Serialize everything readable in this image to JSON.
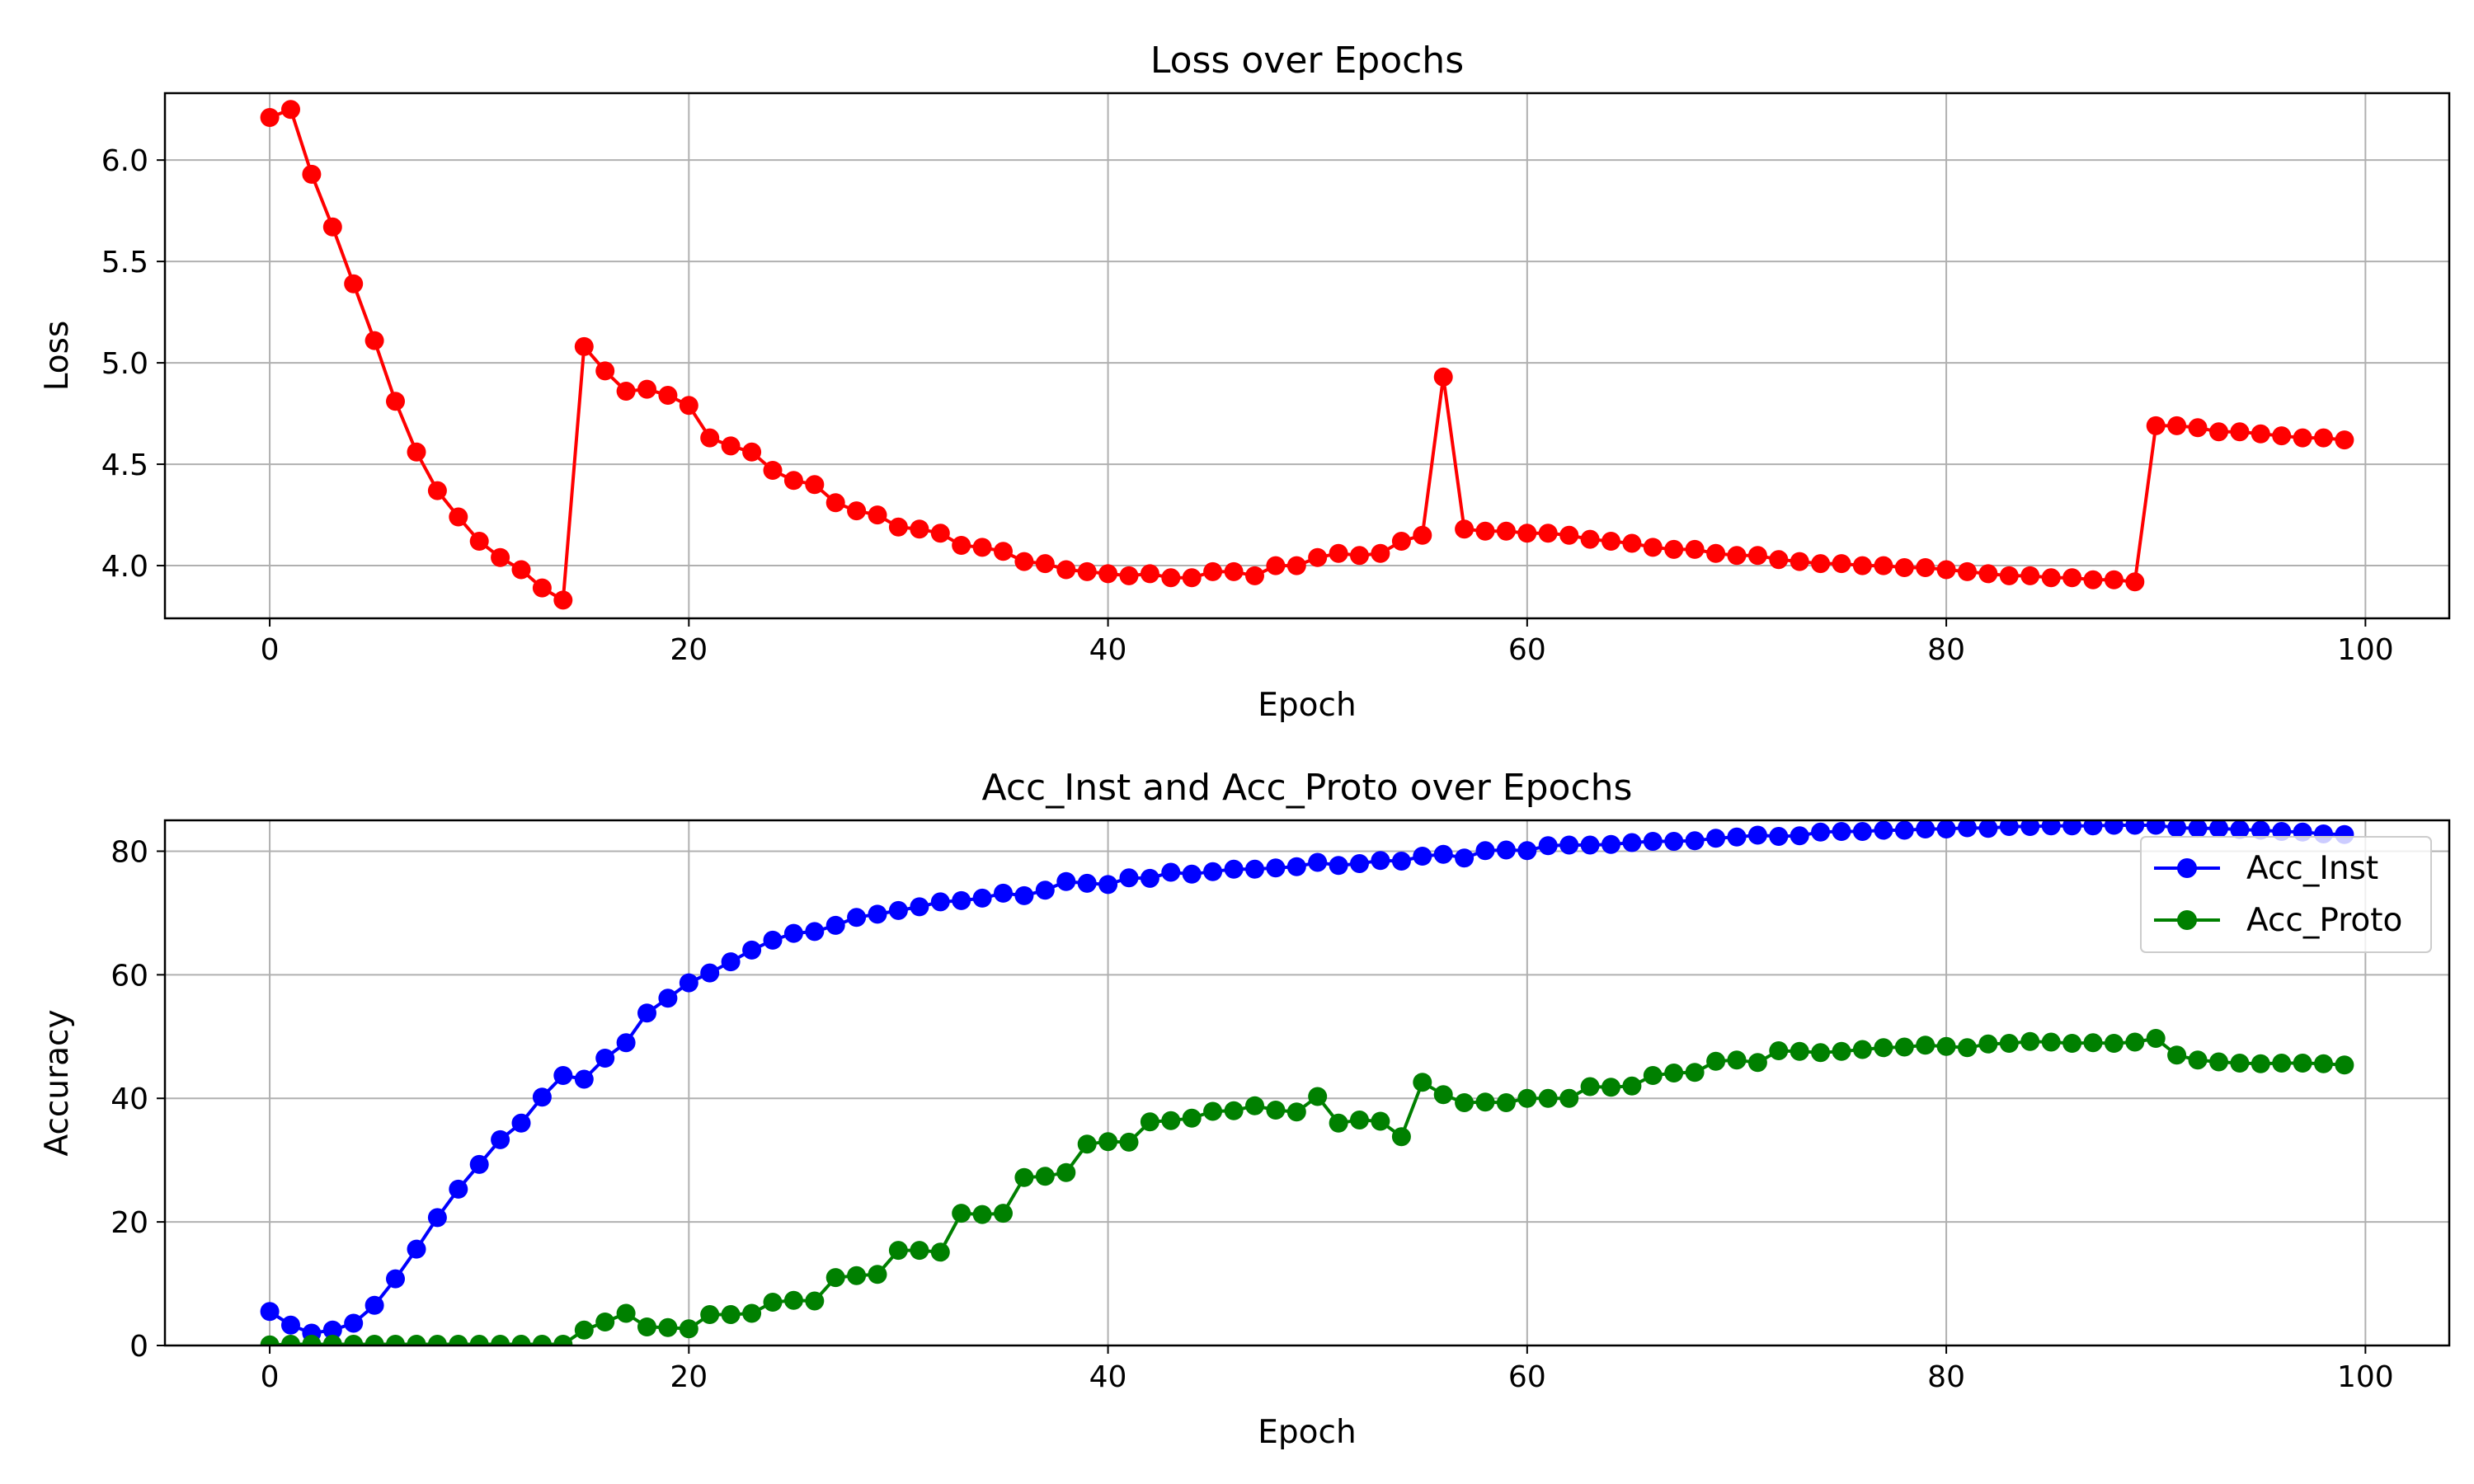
{
  "chart_data": [
    {
      "type": "line",
      "title": "Loss over Epochs",
      "xlabel": "Epoch",
      "ylabel": "Loss",
      "xlim": [
        -5,
        104
      ],
      "ylim": [
        3.74,
        6.33
      ],
      "xticks": [
        0,
        20,
        40,
        60,
        80,
        100
      ],
      "xtick_labels": [
        "0",
        "20",
        "40",
        "60",
        "80",
        "100"
      ],
      "yticks": [
        4.0,
        4.5,
        5.0,
        5.5,
        6.0
      ],
      "ytick_labels": [
        "4.0",
        "4.5",
        "5.0",
        "5.5",
        "6.0"
      ],
      "grid": true,
      "legend": null,
      "series": [
        {
          "color": "#ff0000",
          "marker": "circle",
          "x": [
            0,
            1,
            2,
            3,
            4,
            5,
            6,
            7,
            8,
            9,
            10,
            11,
            12,
            13,
            14,
            15,
            16,
            17,
            18,
            19,
            20,
            21,
            22,
            23,
            24,
            25,
            26,
            27,
            28,
            29,
            30,
            31,
            32,
            33,
            34,
            35,
            36,
            37,
            38,
            39,
            40,
            41,
            42,
            43,
            44,
            45,
            46,
            47,
            48,
            49,
            50,
            51,
            52,
            53,
            54,
            55,
            56,
            57,
            58,
            59,
            60,
            61,
            62,
            63,
            64,
            65,
            66,
            67,
            68,
            69,
            70,
            71,
            72,
            73,
            74,
            75,
            76,
            77,
            78,
            79,
            80,
            81,
            82,
            83,
            84,
            85,
            86,
            87,
            88,
            89,
            90,
            91,
            92,
            93,
            94,
            95,
            96,
            97,
            98,
            99
          ],
          "values": [
            6.21,
            6.25,
            5.93,
            5.67,
            5.39,
            5.11,
            4.81,
            4.56,
            4.37,
            4.24,
            4.12,
            4.04,
            3.98,
            3.89,
            3.83,
            5.08,
            4.96,
            4.86,
            4.87,
            4.84,
            4.79,
            4.63,
            4.59,
            4.56,
            4.47,
            4.42,
            4.4,
            4.31,
            4.27,
            4.25,
            4.19,
            4.18,
            4.16,
            4.1,
            4.09,
            4.07,
            4.02,
            4.01,
            3.98,
            3.97,
            3.96,
            3.95,
            3.96,
            3.94,
            3.94,
            3.97,
            3.97,
            3.95,
            4.0,
            4.0,
            4.04,
            4.06,
            4.05,
            4.06,
            4.12,
            4.15,
            4.93,
            4.18,
            4.17,
            4.17,
            4.16,
            4.16,
            4.15,
            4.13,
            4.12,
            4.11,
            4.09,
            4.08,
            4.08,
            4.06,
            4.05,
            4.05,
            4.03,
            4.02,
            4.01,
            4.01,
            4.0,
            4.0,
            3.99,
            3.99,
            3.98,
            3.97,
            3.96,
            3.95,
            3.95,
            3.94,
            3.94,
            3.93,
            3.93,
            3.92,
            4.69,
            4.69,
            4.68,
            4.66,
            4.66,
            4.65,
            4.64,
            4.63,
            4.63,
            4.62
          ]
        }
      ]
    },
    {
      "type": "line",
      "title": "Acc_Inst and Acc_Proto over Epochs",
      "xlabel": "Epoch",
      "ylabel": "Accuracy",
      "xlim": [
        -5,
        104
      ],
      "ylim": [
        0,
        85
      ],
      "xticks": [
        0,
        20,
        40,
        60,
        80,
        100
      ],
      "xtick_labels": [
        "0",
        "20",
        "40",
        "60",
        "80",
        "100"
      ],
      "yticks": [
        0,
        20,
        40,
        60,
        80
      ],
      "ytick_labels": [
        "0",
        "20",
        "40",
        "60",
        "80"
      ],
      "grid": true,
      "legend": "top-right",
      "series": [
        {
          "name": "Acc_Inst",
          "color": "#0000ff",
          "marker": "circle",
          "x": [
            0,
            1,
            2,
            3,
            4,
            5,
            6,
            7,
            8,
            9,
            10,
            11,
            12,
            13,
            14,
            15,
            16,
            17,
            18,
            19,
            20,
            21,
            22,
            23,
            24,
            25,
            26,
            27,
            28,
            29,
            30,
            31,
            32,
            33,
            34,
            35,
            36,
            37,
            38,
            39,
            40,
            41,
            42,
            43,
            44,
            45,
            46,
            47,
            48,
            49,
            50,
            51,
            52,
            53,
            54,
            55,
            56,
            57,
            58,
            59,
            60,
            61,
            62,
            63,
            64,
            65,
            66,
            67,
            68,
            69,
            70,
            71,
            72,
            73,
            74,
            75,
            76,
            77,
            78,
            79,
            80,
            81,
            82,
            83,
            84,
            85,
            86,
            87,
            88,
            89,
            90,
            91,
            92,
            93,
            94,
            95,
            96,
            97,
            98,
            99
          ],
          "values": [
            5.5,
            3.3,
            2.0,
            2.5,
            3.6,
            6.5,
            10.8,
            15.6,
            20.7,
            25.3,
            29.3,
            33.3,
            36.0,
            40.2,
            43.7,
            43.1,
            46.5,
            49.0,
            53.8,
            56.2,
            58.7,
            60.3,
            62.1,
            64.0,
            65.6,
            66.7,
            67.0,
            68.0,
            69.3,
            69.8,
            70.4,
            71.0,
            71.8,
            72.0,
            72.4,
            73.2,
            72.8,
            73.7,
            75.1,
            74.8,
            74.6,
            75.7,
            75.6,
            76.6,
            76.3,
            76.7,
            77.1,
            77.1,
            77.3,
            77.5,
            78.2,
            77.7,
            78.0,
            78.5,
            78.4,
            79.2,
            79.5,
            78.9,
            80.1,
            80.2,
            80.1,
            80.9,
            81.0,
            81.0,
            81.1,
            81.4,
            81.6,
            81.6,
            81.7,
            82.1,
            82.3,
            82.6,
            82.4,
            82.5,
            83.1,
            83.2,
            83.2,
            83.4,
            83.4,
            83.6,
            83.6,
            83.8,
            83.7,
            84.0,
            84.0,
            84.1,
            84.1,
            84.1,
            84.2,
            84.2,
            84.2,
            83.8,
            83.7,
            83.7,
            83.5,
            83.4,
            83.2,
            83.1,
            82.8,
            82.7
          ]
        },
        {
          "name": "Acc_Proto",
          "color": "#008000",
          "marker": "circle",
          "x": [
            0,
            1,
            2,
            3,
            4,
            5,
            6,
            7,
            8,
            9,
            10,
            11,
            12,
            13,
            14,
            15,
            16,
            17,
            18,
            19,
            20,
            21,
            22,
            23,
            24,
            25,
            26,
            27,
            28,
            29,
            30,
            31,
            32,
            33,
            34,
            35,
            36,
            37,
            38,
            39,
            40,
            41,
            42,
            43,
            44,
            45,
            46,
            47,
            48,
            49,
            50,
            51,
            52,
            53,
            54,
            55,
            56,
            57,
            58,
            59,
            60,
            61,
            62,
            63,
            64,
            65,
            66,
            67,
            68,
            69,
            70,
            71,
            72,
            73,
            74,
            75,
            76,
            77,
            78,
            79,
            80,
            81,
            82,
            83,
            84,
            85,
            86,
            87,
            88,
            89,
            90,
            91,
            92,
            93,
            94,
            95,
            96,
            97,
            98,
            99
          ],
          "values": [
            0.1,
            0.2,
            0.2,
            0.2,
            0.2,
            0.2,
            0.2,
            0.2,
            0.2,
            0.2,
            0.2,
            0.2,
            0.2,
            0.2,
            0.2,
            2.5,
            3.8,
            5.2,
            3.0,
            2.9,
            2.7,
            5.0,
            5.0,
            5.2,
            7.0,
            7.3,
            7.2,
            11.0,
            11.3,
            11.5,
            15.4,
            15.4,
            15.1,
            21.4,
            21.2,
            21.4,
            27.2,
            27.4,
            28.0,
            32.6,
            33.0,
            32.9,
            36.2,
            36.4,
            36.8,
            37.9,
            38.0,
            38.8,
            38.1,
            37.8,
            40.3,
            36.0,
            36.5,
            36.3,
            33.8,
            42.6,
            40.6,
            39.3,
            39.4,
            39.3,
            40.0,
            40.0,
            40.0,
            41.9,
            41.8,
            42.0,
            43.7,
            44.1,
            44.2,
            46.0,
            46.2,
            45.8,
            47.7,
            47.6,
            47.4,
            47.6,
            47.9,
            48.2,
            48.3,
            48.6,
            48.4,
            48.2,
            48.8,
            48.9,
            49.2,
            49.1,
            48.9,
            49.0,
            48.9,
            49.1,
            49.7,
            47.0,
            46.2,
            45.9,
            45.7,
            45.6,
            45.7,
            45.7,
            45.6,
            45.4
          ]
        }
      ]
    }
  ]
}
